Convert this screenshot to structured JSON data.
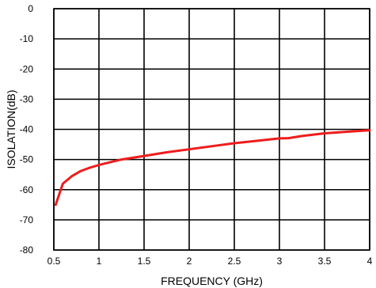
{
  "chart_data": {
    "type": "line",
    "title": "",
    "xlabel": "FREQUENCY (GHz)",
    "ylabel": "ISOLATION(dB)",
    "xlim": [
      0.5,
      4
    ],
    "ylim": [
      -80,
      0
    ],
    "x_ticks": [
      "0.5",
      "1",
      "1.5",
      "2",
      "2.5",
      "3",
      "3.5",
      "4"
    ],
    "y_ticks": [
      "0",
      "-10",
      "-20",
      "-30",
      "-40",
      "-50",
      "-60",
      "-70",
      "-80"
    ],
    "grid": true,
    "series": [
      {
        "color": "#ee1c1c",
        "x": [
          0.52,
          0.6,
          0.7,
          0.8,
          0.9,
          1.0,
          1.25,
          1.5,
          1.75,
          2.0,
          2.25,
          2.5,
          2.75,
          3.0,
          3.1,
          3.25,
          3.5,
          3.75,
          4.0
        ],
        "y": [
          -65,
          -58,
          -55.5,
          -53.8,
          -52.7,
          -51.8,
          -50,
          -48.8,
          -47.6,
          -46.6,
          -45.6,
          -44.6,
          -43.8,
          -43,
          -42.9,
          -42.2,
          -41.3,
          -40.8,
          -40.3
        ]
      }
    ]
  }
}
